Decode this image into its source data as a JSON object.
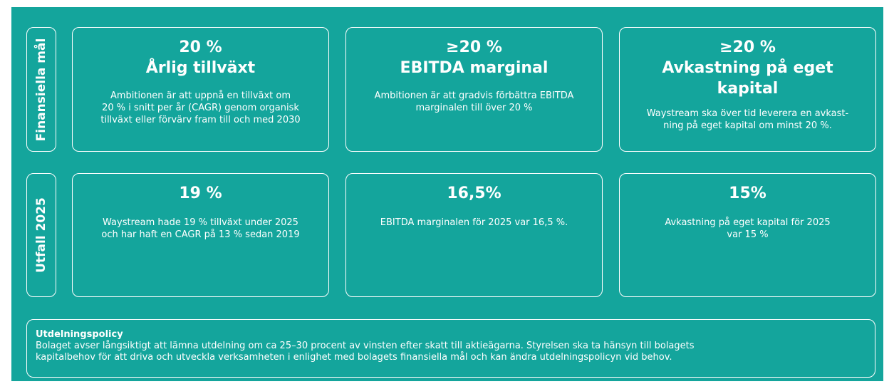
{
  "side_labels": [
    "Finansiella mål",
    "Utfall 2025"
  ],
  "goals": [
    {
      "value": "20 %",
      "title_lines": [
        "Årlig tillväxt"
      ],
      "text_lines": [
        "Ambitionen är att uppnå en tillväxt om",
        "20 % i snitt per år (CAGR) genom organisk",
        "tillväxt eller förvärv fram till och med 2030"
      ]
    },
    {
      "value": "≥20 %",
      "title_lines": [
        "EBITDA marginal"
      ],
      "text_lines": [
        "Ambitionen är att gradvis förbättra EBITDA",
        "marginalen till över 20 %"
      ]
    },
    {
      "value": "≥20 %",
      "title_lines": [
        "Avkastning på eget",
        "kapital"
      ],
      "text_lines": [
        "Waystream ska över tid leverera en avkast-",
        "ning på eget kapital om minst 20 %."
      ]
    }
  ],
  "outcomes": [
    {
      "value": "19 %",
      "text_lines": [
        "Waystream hade 19 % tillväxt under 2025",
        "och har haft en CAGR på 13 % sedan 2019"
      ]
    },
    {
      "value": "16,5%",
      "text_lines": [
        "EBITDA marginalen för 2025 var 16,5 %."
      ]
    },
    {
      "value": "15%",
      "text_lines": [
        "Avkastning på eget kapital för 2025",
        "var 15 %"
      ]
    }
  ],
  "policy": {
    "title": "Utdelningspolicy",
    "text_lines": [
      "Bolaget avser långsiktigt att lämna utdelning om ca 25–30 procent av vinsten efter skatt till aktieägarna. Styrelsen ska ta hänsyn till bolagets",
      "kapitalbehov för att driva och utveckla verksamheten i enlighet med bolagets finansiella mål och kan ändra utdelningspolicyn vid behov."
    ]
  }
}
